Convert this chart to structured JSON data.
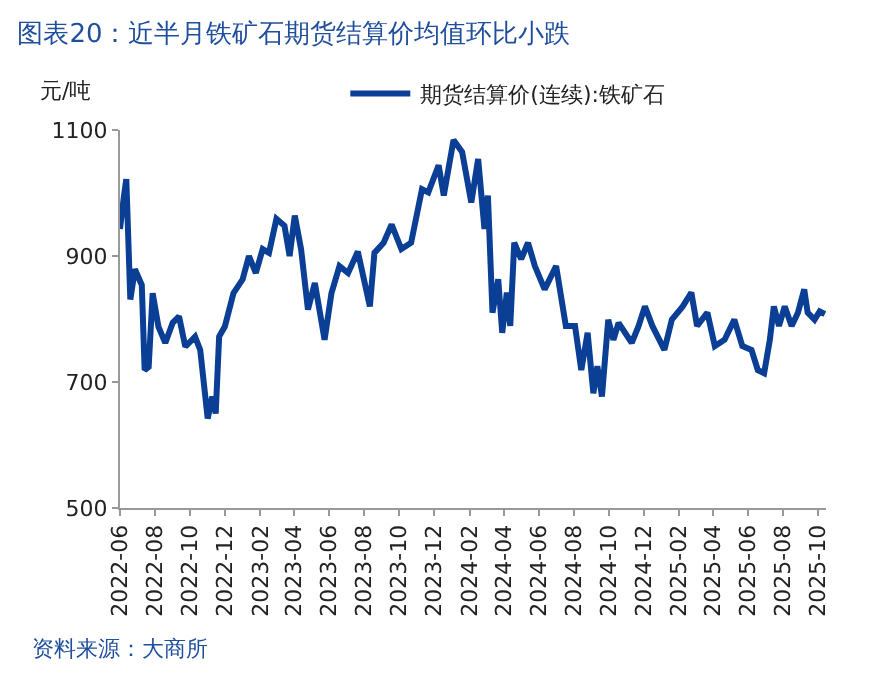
{
  "chart_data": {
    "type": "line",
    "title": "图表20：近半月铁矿石期货结算价均值环比小跌",
    "ylabel": "元/吨",
    "annotations": [
      "资料来源：大商所"
    ],
    "legend": "top",
    "line_style": "solid",
    "marker": "none",
    "xlim": [
      "2022-06-01",
      "2025-10-15"
    ],
    "ylim": [
      500,
      1100
    ],
    "yticks": [
      500,
      700,
      900,
      1100
    ],
    "xticks": [
      "2022-06",
      "2022-08",
      "2022-10",
      "2022-12",
      "2023-02",
      "2023-04",
      "2023-06",
      "2023-08",
      "2023-10",
      "2023-12",
      "2024-02",
      "2024-04",
      "2024-06",
      "2024-08",
      "2024-10",
      "2024-12",
      "2025-02",
      "2025-04",
      "2025-06",
      "2025-08",
      "2025-10"
    ],
    "x": [
      "2022-06-01",
      "2022-06-08",
      "2022-06-12",
      "2022-06-19",
      "2022-06-27",
      "2022-07-09",
      "2022-07-14",
      "2022-07-21",
      "2022-07-28",
      "2022-08-07",
      "2022-08-19",
      "2022-09-01",
      "2022-09-12",
      "2022-09-23",
      "2022-10-10",
      "2022-10-19",
      "2022-11-01",
      "2022-11-09",
      "2022-11-15",
      "2022-11-21",
      "2022-12-01",
      "2022-12-16",
      "2023-01-01",
      "2023-01-12",
      "2023-01-24",
      "2023-02-05",
      "2023-02-16",
      "2023-03-01",
      "2023-03-15",
      "2023-03-24",
      "2023-04-02",
      "2023-04-13",
      "2023-04-25",
      "2023-05-07",
      "2023-05-24",
      "2023-06-05",
      "2023-06-19",
      "2023-07-04",
      "2023-07-21",
      "2023-08-11",
      "2023-08-19",
      "2023-09-04",
      "2023-09-18",
      "2023-10-05",
      "2023-10-22",
      "2023-11-10",
      "2023-11-21",
      "2023-12-09",
      "2023-12-18",
      "2024-01-04",
      "2024-01-19",
      "2024-02-04",
      "2024-02-16",
      "2024-02-27",
      "2024-03-04",
      "2024-03-12",
      "2024-03-22",
      "2024-03-29",
      "2024-04-06",
      "2024-04-12",
      "2024-04-19",
      "2024-05-01",
      "2024-05-13",
      "2024-05-25",
      "2024-06-11",
      "2024-07-01",
      "2024-07-18",
      "2024-08-03",
      "2024-08-14",
      "2024-08-25",
      "2024-09-04",
      "2024-09-11",
      "2024-09-19",
      "2024-09-30",
      "2024-10-09",
      "2024-10-18",
      "2024-11-10",
      "2024-11-22",
      "2024-12-03",
      "2024-12-16",
      "2025-01-06",
      "2025-01-19",
      "2025-02-07",
      "2025-02-22",
      "2025-03-04",
      "2025-03-22",
      "2025-04-04",
      "2025-04-21",
      "2025-05-08",
      "2025-05-22",
      "2025-06-07",
      "2025-06-18",
      "2025-06-29",
      "2025-07-09",
      "2025-07-16",
      "2025-07-25",
      "2025-08-04",
      "2025-08-16",
      "2025-08-27",
      "2025-09-07",
      "2025-09-13",
      "2025-09-25",
      "2025-10-04",
      "2025-10-13"
    ],
    "series": [
      {
        "name": "期货结算价(连续):铁矿石",
        "color": "#0a3f95",
        "values": [
          943,
          996,
          1022,
          831,
          879,
          854,
          719,
          724,
          841,
          788,
          762,
          794,
          804,
          756,
          772,
          751,
          642,
          677,
          650,
          772,
          788,
          841,
          863,
          900,
          873,
          911,
          905,
          959,
          948,
          900,
          964,
          911,
          815,
          857,
          767,
          841,
          884,
          873,
          907,
          820,
          905,
          921,
          950,
          911,
          921,
          1006,
          1001,
          1044,
          996,
          1084,
          1065,
          985,
          1054,
          943,
          996,
          810,
          863,
          778,
          842,
          789,
          921,
          895,
          921,
          884,
          847,
          884,
          789,
          789,
          719,
          778,
          682,
          725,
          677,
          799,
          767,
          794,
          762,
          789,
          820,
          789,
          751,
          799,
          820,
          842,
          789,
          810,
          757,
          767,
          799,
          757,
          751,
          719,
          714,
          767,
          820,
          789,
          820,
          789,
          810,
          847,
          810,
          799,
          812,
          808
        ]
      }
    ]
  }
}
